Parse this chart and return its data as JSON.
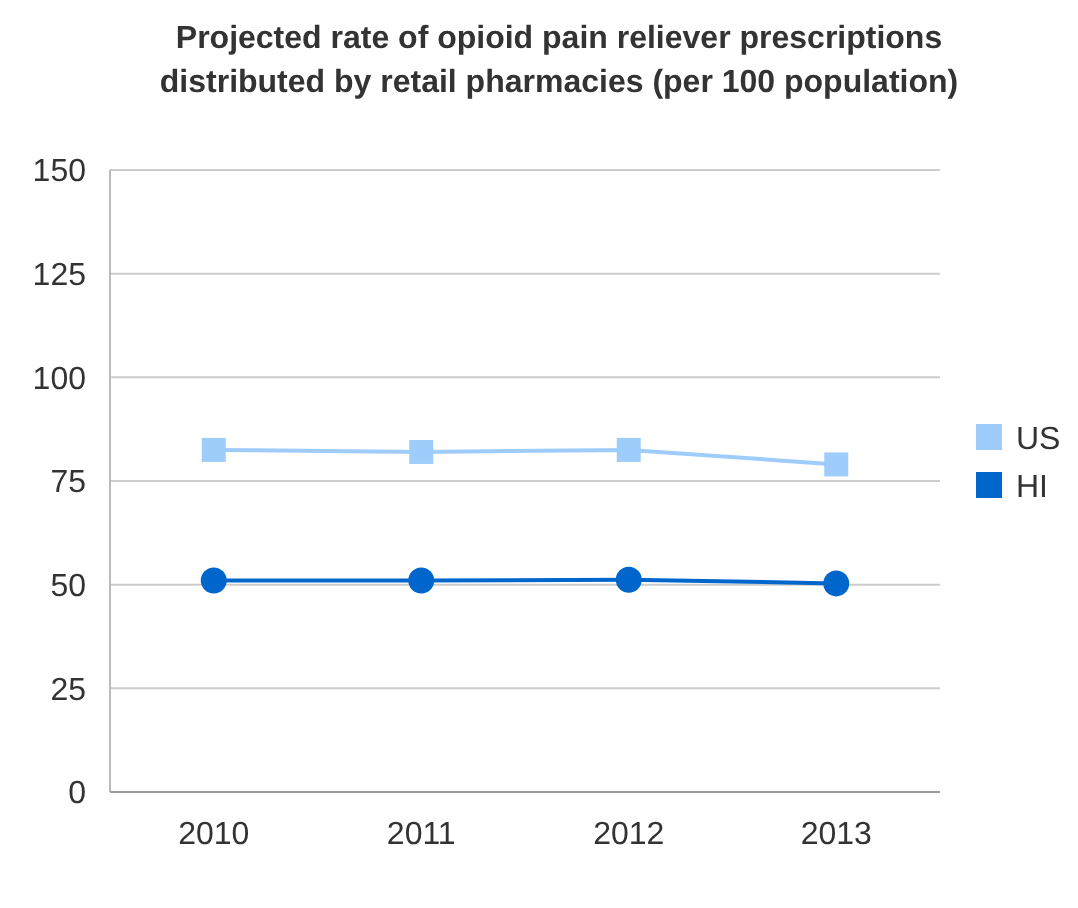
{
  "chart_data": {
    "type": "line",
    "title": "Projected rate of opioid pain reliever prescriptions\ndistributed by retail pharmacies (per 100 population)",
    "categories": [
      "2010",
      "2011",
      "2012",
      "2013"
    ],
    "series": [
      {
        "name": "US",
        "color": "#9fcdfb",
        "values": [
          82.5,
          82,
          82.5,
          79
        ],
        "marker": "square"
      },
      {
        "name": "HI",
        "color": "#0066cc",
        "values": [
          51,
          51,
          51.2,
          50.3
        ],
        "marker": "circle"
      }
    ],
    "ylim": [
      0,
      150
    ],
    "yticks": [
      0,
      25,
      50,
      75,
      100,
      125,
      150
    ],
    "grid": "y",
    "legend": "right"
  }
}
